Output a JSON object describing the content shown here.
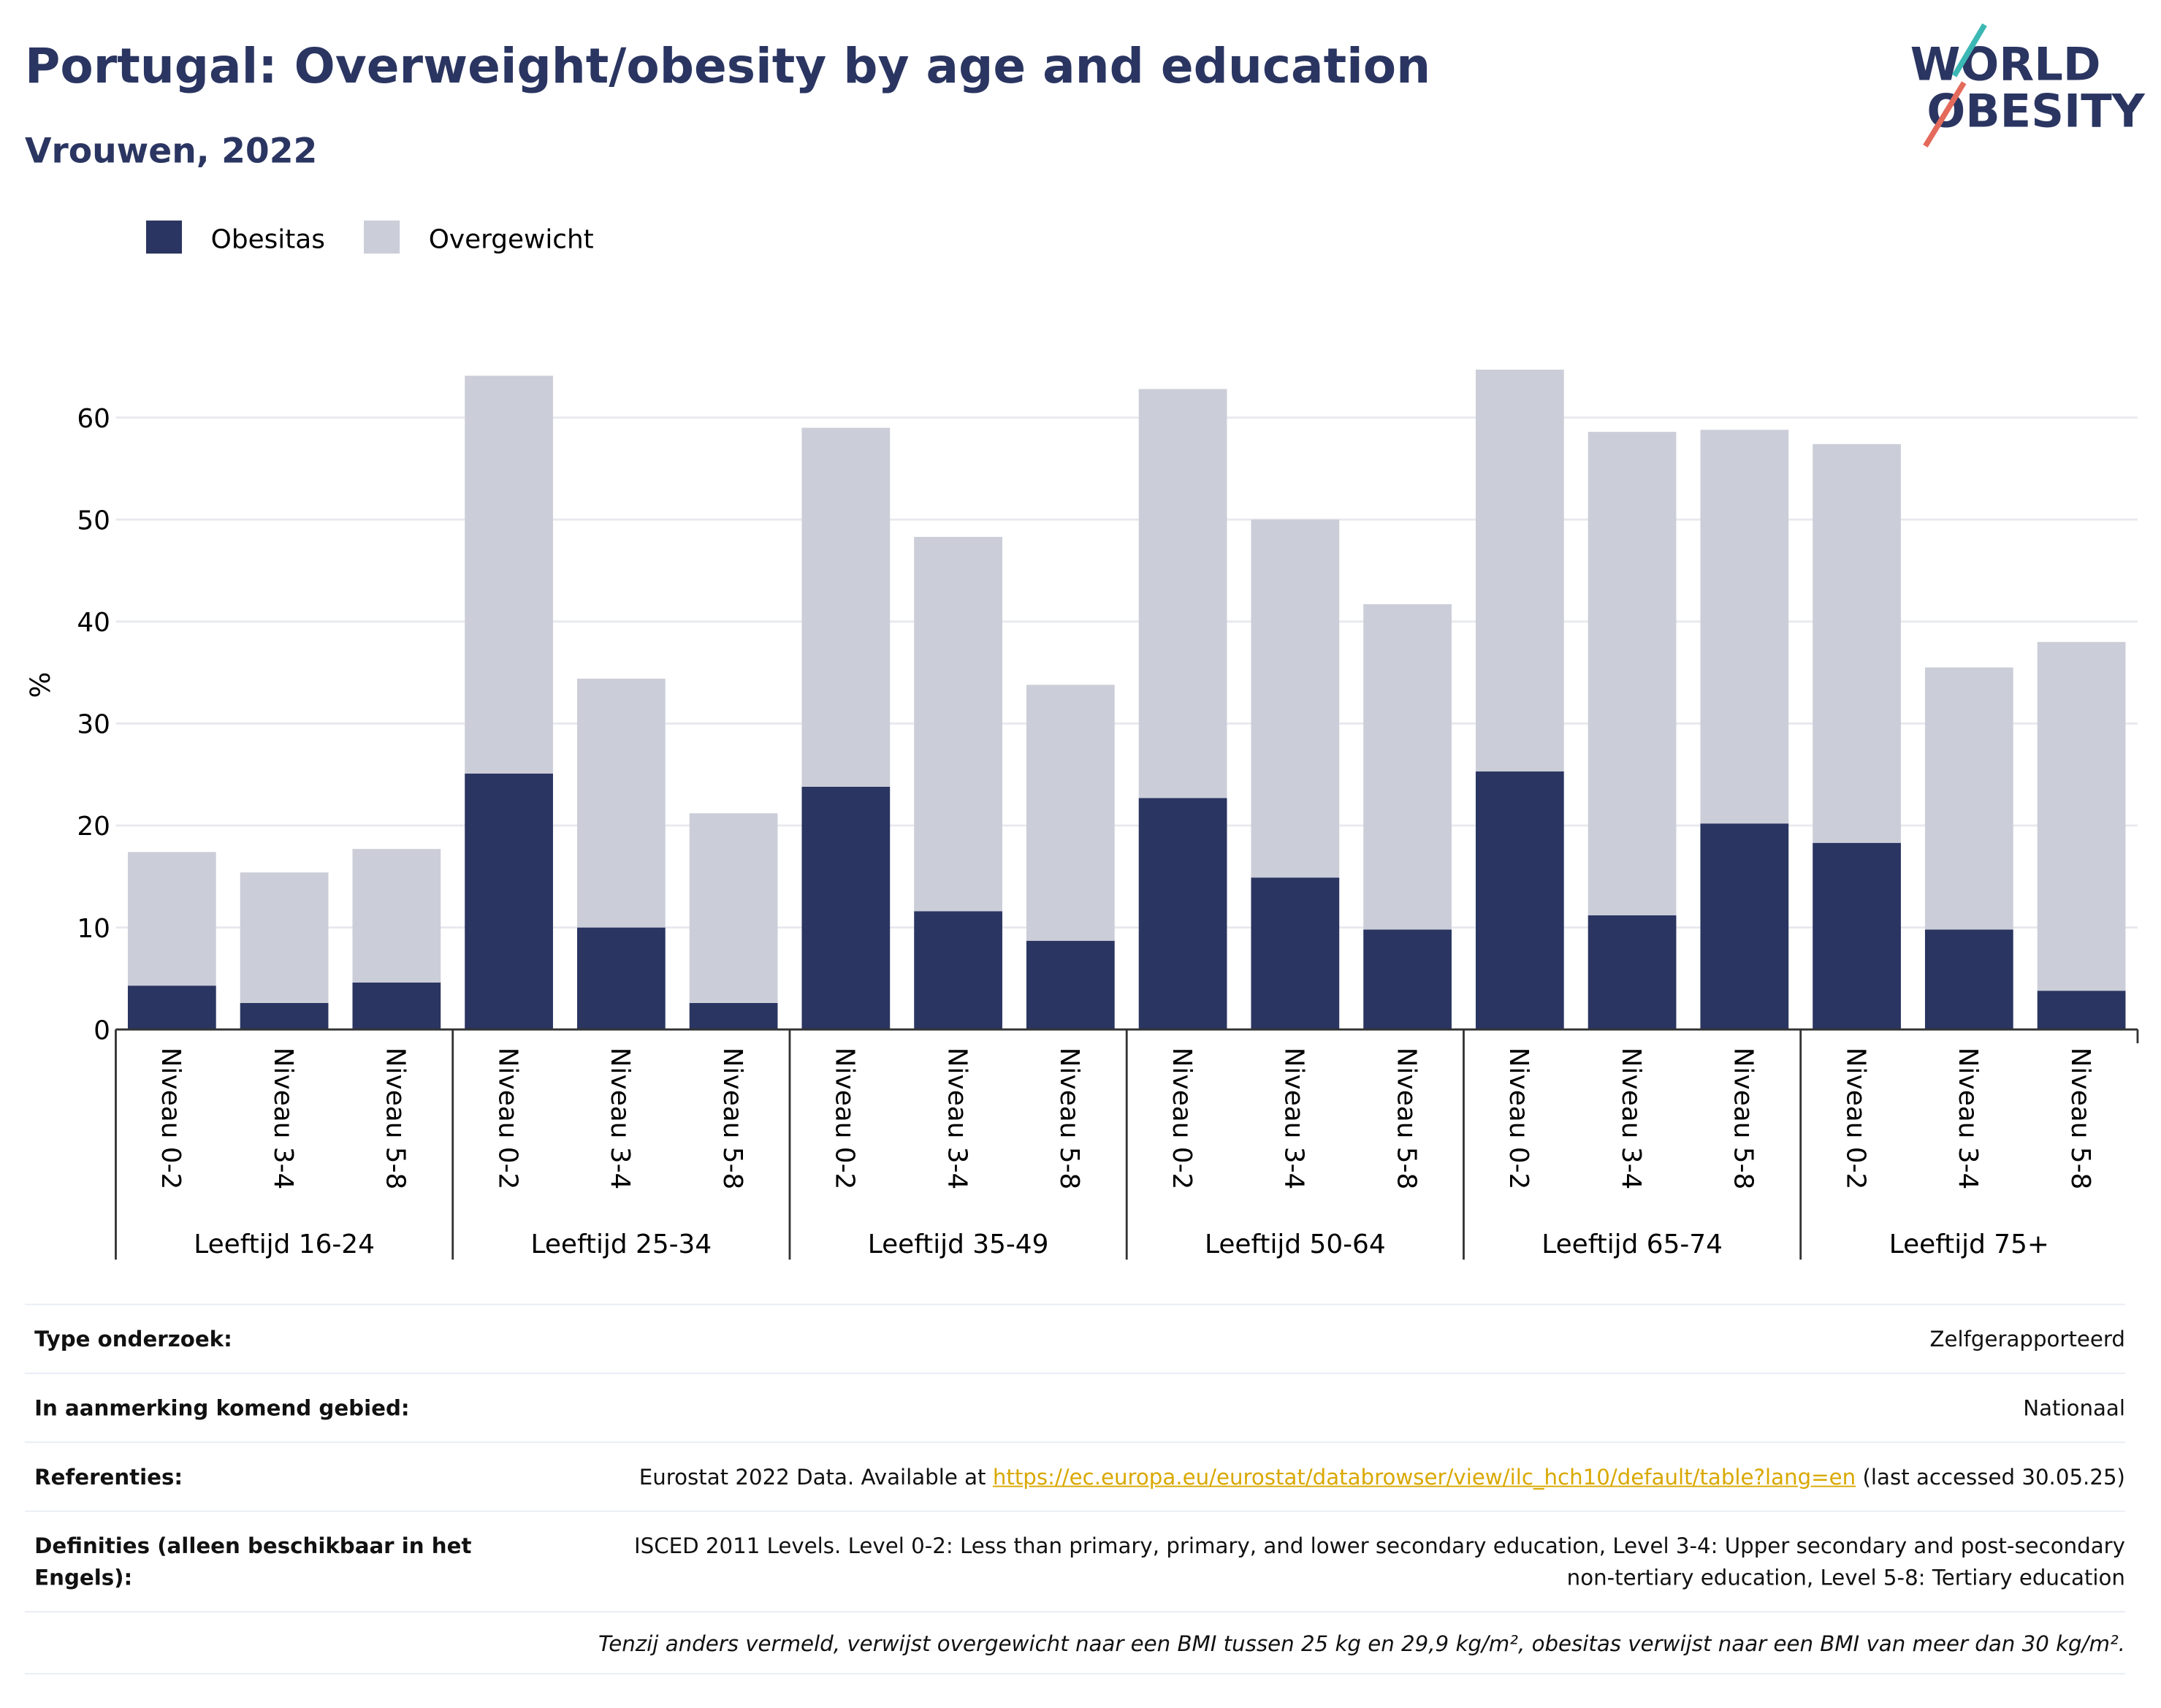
{
  "chart_data": {
    "type": "stacked_bar",
    "title": "Portugal: Overweight/obesity by age and education",
    "subtitle": "Vrouwen, 2022",
    "ylabel": "%",
    "categories": [
      "Niveau 0-2",
      "Niveau 3-4",
      "Niveau 5-8",
      "Niveau 0-2",
      "Niveau 3-4",
      "Niveau 5-8",
      "Niveau 0-2",
      "Niveau 3-4",
      "Niveau 5-8",
      "Niveau 0-2",
      "Niveau 3-4",
      "Niveau 5-8",
      "Niveau 0-2",
      "Niveau 3-4",
      "Niveau 5-8",
      "Niveau 0-2",
      "Niveau 3-4",
      "Niveau 5-8"
    ],
    "groups": [
      "Leeftijd 16-24",
      "Leeftijd 25-34",
      "Leeftijd 35-49",
      "Leeftijd 50-64",
      "Leeftijd 65-74",
      "Leeftijd 75+"
    ],
    "series": [
      {
        "name": "Obesitas",
        "color": "#2a3561",
        "values": [
          4.3,
          2.6,
          4.6,
          25.1,
          10.0,
          2.6,
          23.8,
          11.6,
          8.7,
          22.7,
          14.9,
          9.8,
          25.3,
          11.2,
          20.2,
          18.3,
          9.8,
          3.8
        ]
      },
      {
        "name": "Overgewicht",
        "color": "#cbcdd8",
        "values": [
          13.1,
          12.8,
          13.1,
          39.0,
          24.4,
          18.6,
          35.2,
          36.7,
          25.1,
          40.1,
          35.1,
          31.9,
          39.4,
          47.4,
          38.6,
          39.1,
          25.7,
          34.2
        ]
      }
    ],
    "ylim": [
      0,
      65
    ],
    "yticks": [
      0,
      10,
      20,
      30,
      40,
      50,
      60
    ],
    "grid": true,
    "legend": "top-left"
  },
  "logo": [
    "WORLD",
    "OBESITY"
  ],
  "table": {
    "rows": [
      {
        "label": "Type onderzoek:",
        "value": "Zelfgerapporteerd"
      },
      {
        "label": "In aanmerking komend gebied:",
        "value": "Nationaal"
      },
      {
        "label": "Referenties:",
        "text": "Eurostat 2022 Data. Available at",
        "link": "https://ec.europa.eu/eurostat/databrowser/view/ilc_hch10/default/table?lang=en",
        "after": "(last accessed 30.05.25)"
      },
      {
        "label": "Definities (alleen beschikbaar in het Engels):",
        "value": "ISCED 2011 Levels. Level 0-2: Less than primary, primary, and lower secondary education, Level 3-4: Upper secondary and post-secondary non-tertiary education, Level 5-8: Tertiary education"
      }
    ],
    "footnote": "Tenzij anders vermeld, verwijst overgewicht naar een BMI tussen 25 kg en 29,9 kg/m², obesitas verwijst naar een BMI van meer dan 30 kg/m²."
  }
}
